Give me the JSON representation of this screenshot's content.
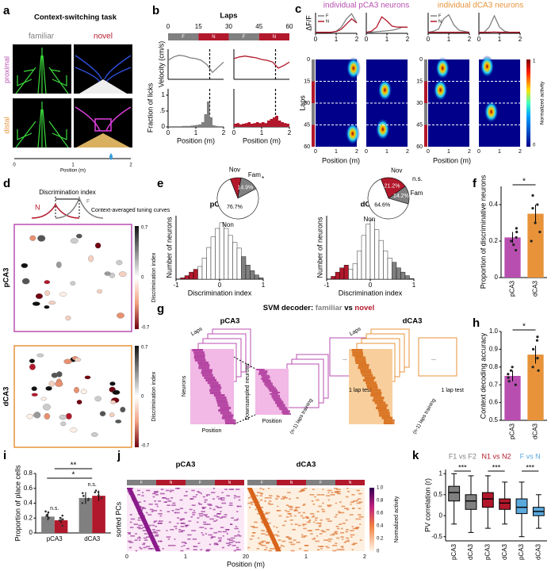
{
  "panel_labels": [
    "a",
    "b",
    "c",
    "d",
    "e",
    "f",
    "g",
    "h",
    "i",
    "j",
    "k"
  ],
  "panels": {
    "a": {
      "title": "Context-switching task",
      "familiar": "familiar",
      "novel": "novel",
      "proximal": "proximal",
      "distal": "distal",
      "xlabel": "Position (m)",
      "xticks": [
        "0",
        "1",
        "2"
      ]
    },
    "c": {
      "title_p": "individual pCA3 neurons",
      "title_d": "individual dCA3 neurons",
      "ylabel": "Laps",
      "yticks": [
        "0",
        "15",
        "30",
        "45",
        "60"
      ],
      "xlabel": "Position (m)",
      "xticks": [
        "0",
        "1",
        "2"
      ],
      "cbar_label": "Normalized activity",
      "cbar_ticks": [
        "1",
        "0"
      ]
    },
    "d": {
      "title": "Discrimination index",
      "f": "F",
      "n": "N",
      "note": "Context-averaged tuning curves",
      "row_p": "pCA3",
      "row_d": "dCA3",
      "cbar_label": "Discrimination index",
      "cbar_ticks": [
        "0.7",
        "0",
        "-0.7"
      ]
    },
    "g": {
      "title": "SVM decoder:",
      "familiar": "familiar",
      "vs": "vs",
      "novel": "novel",
      "p": "pCA3",
      "d": "dCA3",
      "laps": "Laps",
      "neurons": "Neurons",
      "position": "Position",
      "down": "Downsampled neurons",
      "training": "(n-1) laps training",
      "test": "1 lap test",
      "dots": "..."
    },
    "j": {
      "p": "pCA3",
      "d": "dCA3",
      "ylabel": "sorted PCs",
      "xlabel": "Position (m)",
      "xticks": [
        "0",
        "1",
        "2"
      ],
      "blocks": [
        "F",
        "N",
        "F",
        "N"
      ],
      "cbar_label": "Normalized activity",
      "cbar_ticks": [
        "1.0",
        "0.8",
        "0.6",
        "0.4",
        "0.2",
        "0"
      ]
    }
  },
  "chart_data": [
    {
      "type": "line",
      "ylabel": "Velocity (cm/s)",
      "x": [
        0,
        0.2,
        0.4,
        0.6,
        0.8,
        1,
        1.2,
        1.4,
        1.6,
        1.8,
        2
      ],
      "xlim": [
        0,
        2
      ],
      "ylim": [
        0,
        35
      ],
      "markers": [
        1.5
      ],
      "series": [
        {
          "color": "#808080",
          "values": [
            22,
            26,
            28,
            27,
            25,
            24,
            22,
            17,
            8,
            14,
            20
          ]
        }
      ],
      "laps": {
        "title": "Laps",
        "ticks": [
          0,
          15,
          30,
          45,
          60
        ],
        "blocks": [
          "F",
          "N",
          "F",
          "N"
        ],
        "colors": [
          "#808080",
          "#b2182b",
          "#808080",
          "#b2182b"
        ]
      }
    },
    {
      "type": "line",
      "x": [
        0,
        0.2,
        0.4,
        0.6,
        0.8,
        1,
        1.2,
        1.4,
        1.6,
        1.8,
        2
      ],
      "xlim": [
        0,
        2
      ],
      "ylim": [
        0,
        35
      ],
      "markers": [
        1.5
      ],
      "series": [
        {
          "color": "#b2182b",
          "values": [
            24,
            26,
            27,
            26,
            25,
            23,
            22,
            20,
            13,
            16,
            20
          ]
        }
      ]
    },
    {
      "type": "histogram",
      "ylabel": "Fraction of licks",
      "xlabel": "Position (m)",
      "color": "#808080",
      "markers": [
        1.5
      ],
      "bins": [
        0,
        0.1,
        0.2,
        0.3,
        0.4,
        0.5,
        0.6,
        0.7,
        0.8,
        0.9,
        1,
        1.1,
        1.2,
        1.3,
        1.4,
        1.5,
        1.6,
        1.7,
        1.8,
        1.9,
        2
      ],
      "values": [
        0.02,
        0.02,
        0.02,
        0.02,
        0.02,
        0.03,
        0.03,
        0.03,
        0.04,
        0.05,
        0.06,
        0.08,
        0.15,
        0.4,
        0.8,
        0.3,
        0.05,
        0.03,
        0.02,
        0.02
      ],
      "ylim": [
        0,
        1.2
      ],
      "yticks": [
        0,
        {
          "value": 0.5,
          "label": ".5"
        },
        1
      ],
      "xticks": [
        0,
        1,
        2
      ]
    },
    {
      "type": "histogram",
      "xlabel": "Position (m)",
      "color": "#b2182b",
      "markers": [
        1.5
      ],
      "bins": [
        0,
        0.1,
        0.2,
        0.3,
        0.4,
        0.5,
        0.6,
        0.7,
        0.8,
        0.9,
        1,
        1.1,
        1.2,
        1.3,
        1.4,
        1.5,
        1.6,
        1.7,
        1.8,
        1.9,
        2
      ],
      "values": [
        0.1,
        0.12,
        0.08,
        0.1,
        0.12,
        0.15,
        0.1,
        0.12,
        0.15,
        0.12,
        0.15,
        0.12,
        0.2,
        0.25,
        0.3,
        0.35,
        0.2,
        0.15,
        0.12,
        0.1
      ],
      "ylim": [
        0,
        1.2
      ],
      "xticks": [
        0,
        1,
        2
      ]
    },
    {
      "type": "line",
      "ylabel": "ΔF/F",
      "x": [
        0,
        0.25,
        0.5,
        0.75,
        1,
        1.25,
        1.5,
        1.75,
        2
      ],
      "xlim": [
        0,
        2
      ],
      "ylim": [
        0,
        1
      ],
      "xticks": [
        0,
        1,
        2
      ],
      "legend": "upper left",
      "series": [
        {
          "name": "F",
          "color": "#808080",
          "values": [
            0.05,
            0.05,
            0.05,
            0.05,
            0.1,
            0.3,
            0.7,
            0.95,
            0.5
          ]
        },
        {
          "name": "N",
          "color": "#b2182b",
          "values": [
            0.05,
            0.05,
            0.05,
            0.05,
            0.08,
            0.2,
            0.45,
            0.7,
            0.5
          ]
        }
      ]
    },
    {
      "type": "line",
      "x": [
        0,
        0.25,
        0.5,
        0.75,
        1,
        1.25,
        1.5,
        1.75,
        2
      ],
      "xlim": [
        0,
        2
      ],
      "ylim": [
        0,
        1
      ],
      "xticks": [
        0,
        1,
        2
      ],
      "series": [
        {
          "color": "#808080",
          "values": [
            0.05,
            0.05,
            0.08,
            0.1,
            0.12,
            0.15,
            0.2,
            0.3,
            0.3
          ]
        },
        {
          "color": "#b2182b",
          "values": [
            0.05,
            0.1,
            0.3,
            0.8,
            0.6,
            0.35,
            0.3,
            0.3,
            0.3
          ]
        }
      ]
    },
    {
      "type": "line",
      "x": [
        0,
        0.25,
        0.5,
        0.75,
        1,
        1.25,
        1.5,
        1.75,
        2
      ],
      "xlim": [
        0,
        2
      ],
      "ylim": [
        0,
        1
      ],
      "xticks": [
        0,
        1,
        2
      ],
      "legend": "upper left",
      "series": [
        {
          "name": "F",
          "color": "#808080",
          "values": [
            0.05,
            0.1,
            0.2,
            0.7,
            0.9,
            0.4,
            0.15,
            0.1,
            0.05
          ]
        },
        {
          "name": "N",
          "color": "#b2182b",
          "values": [
            0.05,
            0.05,
            0.05,
            0.05,
            0.05,
            0.05,
            0.05,
            0.05,
            0.05
          ]
        }
      ]
    },
    {
      "type": "line",
      "x": [
        0,
        0.25,
        0.5,
        0.75,
        1,
        1.25,
        1.5,
        1.75,
        2
      ],
      "xlim": [
        0,
        2
      ],
      "ylim": [
        0,
        1
      ],
      "xticks": [
        0,
        1,
        2
      ],
      "series": [
        {
          "color": "#808080",
          "values": [
            0.05,
            0.05,
            0.3,
            0.85,
            0.3,
            0.1,
            0.05,
            0.05,
            0.05
          ]
        },
        {
          "color": "#b2182b",
          "values": [
            0.05,
            0.05,
            0.05,
            0.06,
            0.05,
            0.05,
            0.05,
            0.05,
            0.05
          ]
        }
      ]
    },
    {
      "type": "histogram",
      "title": "pCA3",
      "ylabel": "Number of neurons",
      "xlabel": "Discrimination index",
      "bins": [
        -1,
        -0.9,
        -0.8,
        -0.7,
        -0.6,
        -0.5,
        -0.4,
        -0.3,
        -0.2,
        -0.1,
        0,
        0.1,
        0.2,
        0.3,
        0.4,
        0.5,
        0.6,
        0.7,
        0.8,
        0.9,
        1
      ],
      "values": [
        0,
        2,
        5,
        10,
        14,
        18,
        30,
        45,
        60,
        72,
        80,
        72,
        62,
        52,
        44,
        32,
        20,
        12,
        6,
        2
      ],
      "bar_colors": [
        "#b2182b",
        "#b2182b",
        "#b2182b",
        "#b2182b",
        "#b2182b",
        "#ffffff",
        "#ffffff",
        "#ffffff",
        "#ffffff",
        "#ffffff",
        "#ffffff",
        "#ffffff",
        "#ffffff",
        "#ffffff",
        "#ffffff",
        "#808080",
        "#808080",
        "#808080",
        "#808080",
        "#808080"
      ],
      "ylim": [
        0,
        90
      ],
      "xticks": [
        -1,
        0,
        1
      ]
    },
    {
      "type": "pie",
      "categories": [
        "Nov",
        "Fam",
        "Non"
      ],
      "values": [
        8.4,
        14.9,
        76.7
      ],
      "value_labels": [
        null,
        "14.9%",
        "76.7%"
      ],
      "colors": [
        "#b2182b",
        "#808080",
        "#ffffff"
      ],
      "annotation": "*"
    },
    {
      "type": "histogram",
      "title": "dCA3",
      "ylabel": "Number of neurons",
      "xlabel": "Discrimination index",
      "bins": [
        -1,
        -0.9,
        -0.8,
        -0.7,
        -0.6,
        -0.5,
        -0.4,
        -0.3,
        -0.2,
        -0.1,
        0,
        0.1,
        0.2,
        0.3,
        0.4,
        0.5,
        0.6,
        0.7,
        0.8,
        0.9,
        1
      ],
      "values": [
        0,
        4,
        10,
        16,
        20,
        14,
        22,
        40,
        62,
        78,
        84,
        70,
        55,
        40,
        30,
        24,
        16,
        10,
        5,
        1
      ],
      "bar_colors": [
        "#b2182b",
        "#b2182b",
        "#b2182b",
        "#b2182b",
        "#b2182b",
        "#ffffff",
        "#ffffff",
        "#ffffff",
        "#ffffff",
        "#ffffff",
        "#ffffff",
        "#ffffff",
        "#ffffff",
        "#ffffff",
        "#ffffff",
        "#808080",
        "#808080",
        "#808080",
        "#808080",
        "#808080"
      ],
      "ylim": [
        0,
        90
      ],
      "xticks": [
        -1,
        0,
        1
      ]
    },
    {
      "type": "pie",
      "categories": [
        "Nov",
        "Fam",
        "Non"
      ],
      "values": [
        21.2,
        14.2,
        64.6
      ],
      "value_labels": [
        "21.2%",
        "14.2%",
        "64.6%"
      ],
      "colors": [
        "#b2182b",
        "#808080",
        "#ffffff"
      ],
      "annotation": "n.s."
    },
    {
      "type": "bar",
      "categories": [
        "pCA3",
        "dCA3"
      ],
      "values": [
        0.22,
        0.35
      ],
      "errors": [
        0.03,
        0.05
      ],
      "colors": [
        "#b84fb0",
        "#e8933a"
      ],
      "points": [
        [
          0.15,
          0.2,
          0.25,
          0.22,
          0.18,
          0.27
        ],
        [
          0.25,
          0.4,
          0.45,
          0.3,
          0.2,
          0.38
        ]
      ],
      "ylim": [
        0,
        0.5
      ],
      "yticks": [
        0,
        0.2,
        0.4
      ],
      "ylabel": "Proportion of discriminative neurons",
      "annotation": "*"
    },
    {
      "type": "bar",
      "categories": [
        "pCA3",
        "dCA3"
      ],
      "values": [
        0.75,
        0.87
      ],
      "errors": [
        0.03,
        0.05
      ],
      "colors": [
        "#b84fb0",
        "#e8933a"
      ],
      "points": [
        [
          0.7,
          0.74,
          0.78,
          0.8,
          0.72,
          0.76
        ],
        [
          0.78,
          0.85,
          0.95,
          0.9,
          0.8,
          0.97
        ]
      ],
      "ylim": [
        0.5,
        1.0
      ],
      "yticks": [
        0.5,
        0.6,
        0.7,
        0.8,
        0.9,
        {
          "value": 1,
          "label": "1.0"
        }
      ],
      "ylabel": "Context decoding accuracy",
      "annotation": "*"
    },
    {
      "type": "bar",
      "categories": [
        "pCA3",
        "dCA3"
      ],
      "ylim": [
        0,
        0.8
      ],
      "yticks": [
        0,
        0.2,
        0.4,
        0.6,
        0.8
      ],
      "ylabel": "Proportion of place cells",
      "series": [
        {
          "color": "#808080",
          "values": [
            0.22,
            0.47
          ],
          "errors": [
            0.05,
            0.08
          ]
        },
        {
          "color": "#b2182b",
          "values": [
            0.17,
            0.5
          ],
          "errors": [
            0.04,
            0.07
          ]
        }
      ],
      "annotations": [
        "n.s.",
        "n.s.",
        "*",
        "**"
      ]
    },
    {
      "type": "box",
      "categories": [
        "pCA3",
        "dCA3",
        "pCA3",
        "dCA3",
        "pCA3",
        "dCA3"
      ],
      "groups": [
        "F1 vs F2",
        "N1 vs N2",
        "F vs N"
      ],
      "group_colors": [
        "#808080",
        "#b2182b",
        "#5aa9dd"
      ],
      "boxes": [
        [
          -0.2,
          0.35,
          0.55,
          0.7,
          1.0
        ],
        [
          -0.4,
          0.15,
          0.35,
          0.5,
          0.95
        ],
        [
          -0.3,
          0.2,
          0.4,
          0.55,
          0.95
        ],
        [
          -0.2,
          0.15,
          0.3,
          0.4,
          0.8
        ],
        [
          -0.5,
          0.05,
          0.2,
          0.4,
          0.8
        ],
        [
          -0.3,
          0,
          0.1,
          0.2,
          0.5
        ]
      ],
      "colors": [
        "#808080",
        "#808080",
        "#b2182b",
        "#b2182b",
        "#5aa9dd",
        "#5aa9dd"
      ],
      "ylim": [
        -0.6,
        1.1
      ],
      "yticks": [
        -0.5,
        0,
        0.5,
        1
      ],
      "ylabel": "PV correlation (r)",
      "annotations": [
        "***",
        "***",
        "***"
      ]
    }
  ]
}
